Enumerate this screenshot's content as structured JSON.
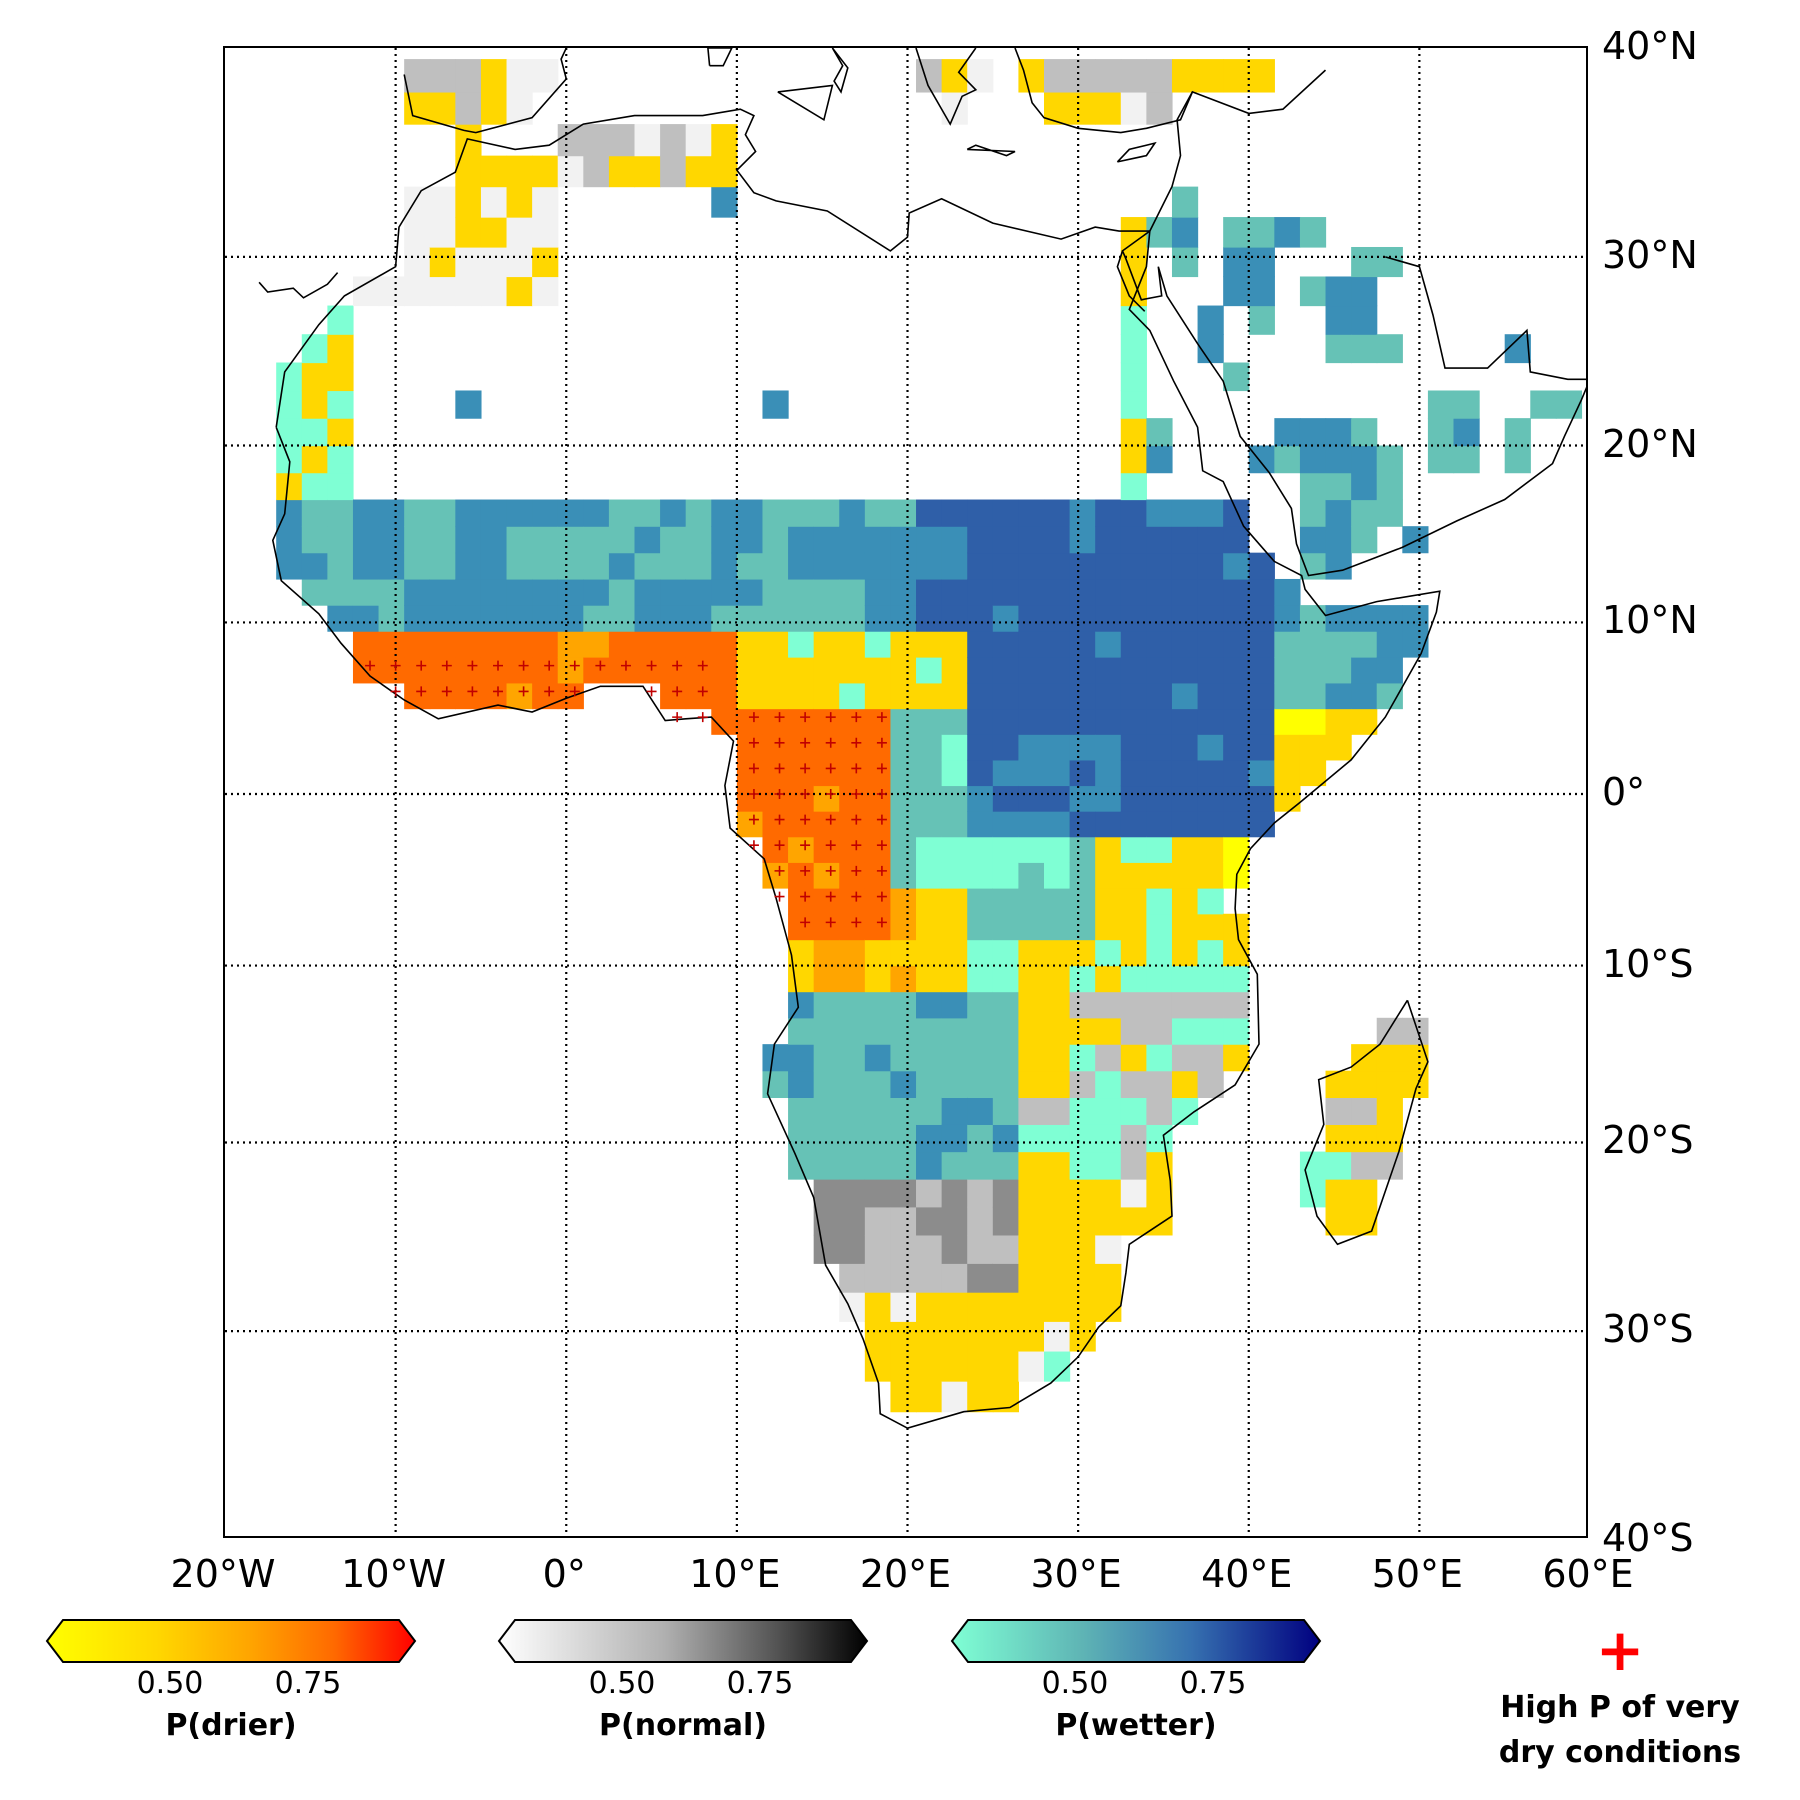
{
  "map": {
    "lon_range": [
      -20,
      60
    ],
    "lat_range": [
      -40,
      40
    ],
    "gridlines": "dotted",
    "lat_labels": [
      "40°N",
      "30°N",
      "20°N",
      "10°N",
      "0°",
      "10°S",
      "20°S",
      "30°S",
      "40°S"
    ],
    "lat_values": [
      40,
      30,
      20,
      10,
      0,
      -10,
      -20,
      -30,
      -40
    ],
    "lon_labels": [
      "20°W",
      "10°W",
      "0°",
      "10°E",
      "20°E",
      "30°E",
      "40°E",
      "50°E",
      "60°E"
    ],
    "lon_values": [
      -20,
      -10,
      0,
      10,
      20,
      30,
      40,
      50,
      60
    ],
    "colors": {
      "drier": [
        "#ffff00",
        "#ffd700",
        "#ffa500",
        "#ff6a00",
        "#ff0000"
      ],
      "normal": [
        "#f2f2f2",
        "#bfbfbf",
        "#8c8c8c",
        "#404040",
        "#000000"
      ],
      "wetter": [
        "#7fffd4",
        "#66c2b6",
        "#3a8fb7",
        "#2f5fa8",
        "#000080"
      ],
      "marker": "#ff0000"
    }
  },
  "legend": {
    "colorbars": [
      {
        "id": "drier",
        "title": "P(drier)",
        "ticks": [
          "0.50",
          "0.75"
        ]
      },
      {
        "id": "normal",
        "title": "P(normal)",
        "ticks": [
          "0.50",
          "0.75"
        ]
      },
      {
        "id": "wetter",
        "title": "P(wetter)",
        "ticks": [
          "0.50",
          "0.75"
        ]
      }
    ],
    "marker_symbol": "+",
    "marker_label_line1": "High P of very",
    "marker_label_line2": "dry conditions"
  }
}
